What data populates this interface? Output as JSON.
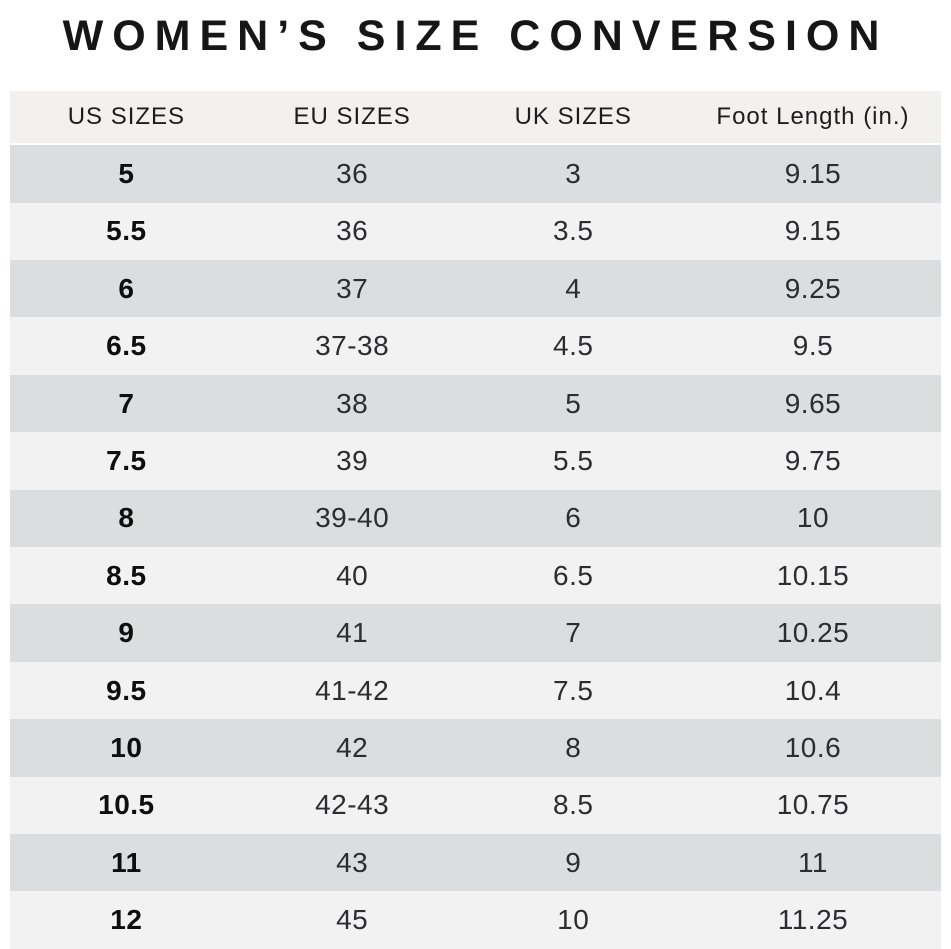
{
  "page": {
    "title": "WOMEN’S SIZE CONVERSION"
  },
  "colors": {
    "title_color": "#161616",
    "header_bg": "#f2f1ef",
    "header_text": "#1d1d1f",
    "row_dark": "#dcddde",
    "row_light": "#f2f2f3",
    "cell_text": "#2d2d2f",
    "us_text": "#0e0e0e",
    "page_bg": "#ffffff"
  },
  "chart_data": {
    "type": "table",
    "title": "WOMEN’S SIZE CONVERSION",
    "columns": [
      "US SIZES",
      "EU SIZES",
      "UK SIZES",
      "Foot Length (in.)"
    ],
    "rows": [
      [
        "5",
        "36",
        "3",
        "9.15"
      ],
      [
        "5.5",
        "36",
        "3.5",
        "9.15"
      ],
      [
        "6",
        "37",
        "4",
        "9.25"
      ],
      [
        "6.5",
        "37-38",
        "4.5",
        "9.5"
      ],
      [
        "7",
        "38",
        "5",
        "9.65"
      ],
      [
        "7.5",
        "39",
        "5.5",
        "9.75"
      ],
      [
        "8",
        "39-40",
        "6",
        "10"
      ],
      [
        "8.5",
        "40",
        "6.5",
        "10.15"
      ],
      [
        "9",
        "41",
        "7",
        "10.25"
      ],
      [
        "9.5",
        "41-42",
        "7.5",
        "10.4"
      ],
      [
        "10",
        "42",
        "8",
        "10.6"
      ],
      [
        "10.5",
        "42-43",
        "8.5",
        "10.75"
      ],
      [
        "11",
        "43",
        "9",
        "11"
      ],
      [
        "12",
        "45",
        "10",
        "11.25"
      ]
    ],
    "layout": {
      "row_striping": "first-data-row-dark, alternating",
      "alignment": "all-columns-centered",
      "us_column_bold": true
    }
  }
}
